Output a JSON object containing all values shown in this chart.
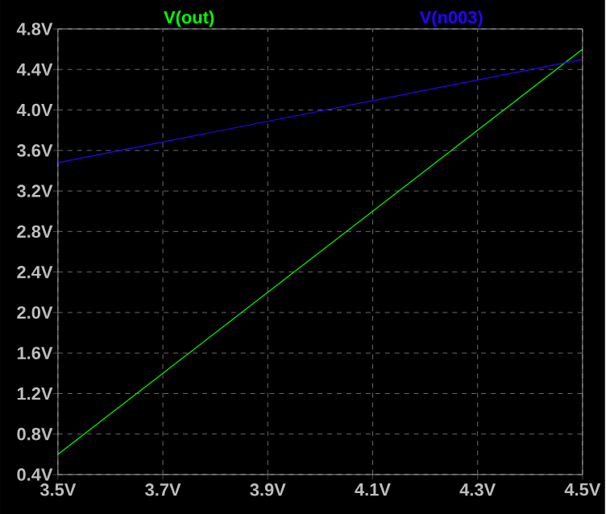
{
  "chart_data": {
    "type": "line",
    "x": [
      3.5,
      4.5
    ],
    "series": [
      {
        "name": "V(out)",
        "color": "#00ff00",
        "values": [
          0.6,
          4.6
        ]
      },
      {
        "name": "V(n003)",
        "color": "#2a00ff",
        "values": [
          3.48,
          4.5
        ]
      }
    ],
    "xlim": [
      3.5,
      4.5
    ],
    "ylim": [
      0.4,
      4.8
    ],
    "xticks": [
      {
        "value": 3.5,
        "label": "3.5V"
      },
      {
        "value": 3.7,
        "label": "3.7V"
      },
      {
        "value": 3.9,
        "label": "3.9V"
      },
      {
        "value": 4.1,
        "label": "4.1V"
      },
      {
        "value": 4.3,
        "label": "4.3V"
      },
      {
        "value": 4.5,
        "label": "4.5V"
      }
    ],
    "yticks": [
      {
        "value": 0.4,
        "label": "0.4V"
      },
      {
        "value": 0.8,
        "label": "0.8V"
      },
      {
        "value": 1.2,
        "label": "1.2V"
      },
      {
        "value": 1.6,
        "label": "1.6V"
      },
      {
        "value": 2.0,
        "label": "2.0V"
      },
      {
        "value": 2.4,
        "label": "2.4V"
      },
      {
        "value": 2.8,
        "label": "2.8V"
      },
      {
        "value": 3.2,
        "label": "3.2V"
      },
      {
        "value": 3.6,
        "label": "3.6V"
      },
      {
        "value": 4.0,
        "label": "4.0V"
      },
      {
        "value": 4.4,
        "label": "4.4V"
      },
      {
        "value": 4.8,
        "label": "4.8V"
      }
    ],
    "grid": true,
    "marker": "none",
    "line_style": "solid"
  }
}
